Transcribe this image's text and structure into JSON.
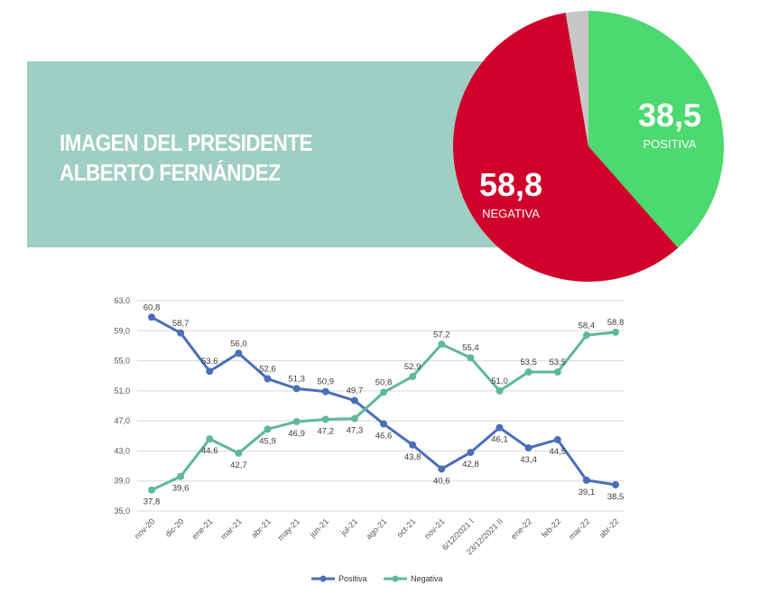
{
  "header": {
    "title_line1": "IMAGEN DEL PRESIDENTE",
    "title_line2": "ALBERTO FERNÁNDEZ"
  },
  "pie": {
    "slices": [
      {
        "name": "positiva",
        "value": 38.5,
        "value_label": "38,5",
        "label": "POSITIVA",
        "color": "#4cd96f"
      },
      {
        "name": "negativa",
        "value": 58.8,
        "value_label": "58,8",
        "label": "NEGATIVA",
        "color": "#d0022b"
      },
      {
        "name": "other",
        "value": 2.7,
        "color": "#c7c7c7"
      }
    ]
  },
  "chart_data": {
    "type": "line",
    "categories": [
      "nov-20",
      "dic-20",
      "ene-21",
      "mar-21",
      "abr-21",
      "may-21",
      "jun-21",
      "jul-21",
      "ago-21",
      "oct-21",
      "nov-21",
      "6/12/2021 I",
      "23/12/2021 II",
      "ene-22",
      "feb-22",
      "mar-22",
      "abr-22"
    ],
    "series": [
      {
        "name": "Positiva",
        "color": "#4a6fb8",
        "values": [
          60.8,
          58.7,
          53.6,
          56.0,
          52.6,
          51.3,
          50.9,
          49.7,
          46.6,
          43.8,
          40.6,
          42.8,
          46.1,
          43.4,
          44.5,
          39.1,
          38.5
        ],
        "labels": [
          "60,8",
          "58,7",
          "53,6",
          "56,0",
          "52,6",
          "51,3",
          "50,9",
          "49,7",
          "46,6",
          "43,8",
          "40,6",
          "42,8",
          "46,1",
          "43,4",
          "44,5",
          "39,1",
          "38,5"
        ]
      },
      {
        "name": "Negativa",
        "color": "#5fb896",
        "values": [
          37.8,
          39.6,
          44.6,
          42.7,
          45.9,
          46.9,
          47.2,
          47.3,
          50.8,
          52.9,
          57.2,
          55.4,
          51.0,
          53.5,
          53.5,
          58.4,
          58.8
        ],
        "labels": [
          "37,8",
          "39,6",
          "44,6",
          "42,7",
          "45,9",
          "46,9",
          "47,2",
          "47,3",
          "50,8",
          "52,9",
          "57,2",
          "55,4",
          "51,0",
          "53,5",
          "53,5",
          "58,4",
          "58,8"
        ]
      }
    ],
    "y_ticks": [
      "63,0",
      "59,0",
      "55,0",
      "51,0",
      "47,0",
      "43,0",
      "39,0",
      "35,0"
    ],
    "ylim": [
      35,
      63
    ],
    "grid": true,
    "legend": "bottom"
  }
}
